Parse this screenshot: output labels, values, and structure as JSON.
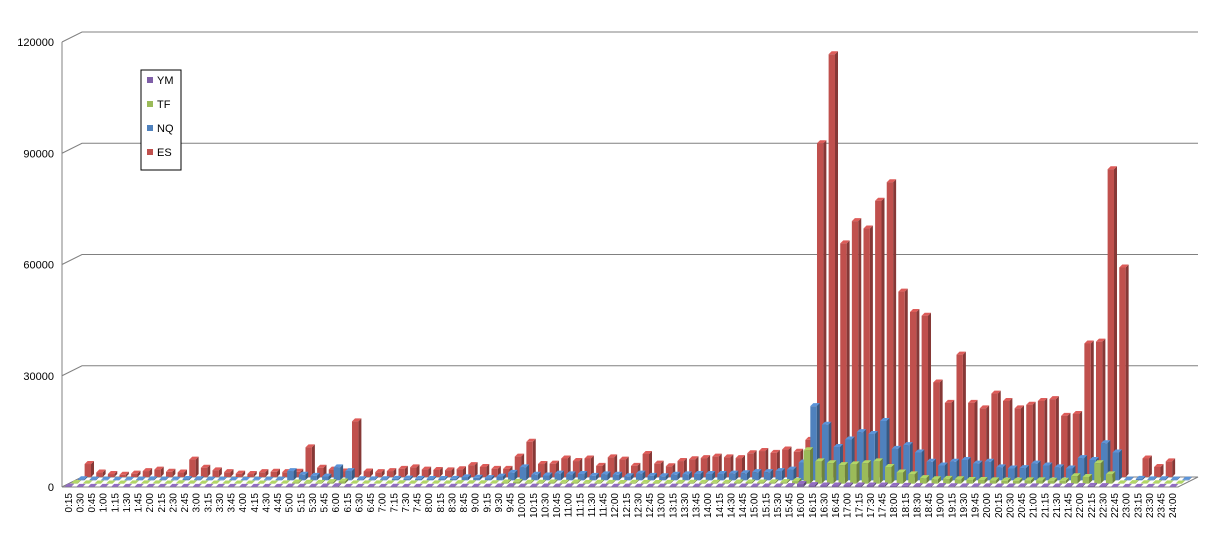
{
  "chart_data": {
    "type": "bar",
    "title": "",
    "xlabel": "",
    "ylabel": "",
    "ylim": [
      0,
      120000
    ],
    "yticks": [
      0,
      30000,
      60000,
      90000,
      120000
    ],
    "grid": true,
    "legend_position": "top-left",
    "legend_order": [
      "YM",
      "TF",
      "NQ",
      "ES"
    ],
    "categories": [
      "0:15",
      "0:30",
      "0:45",
      "1:00",
      "1:15",
      "1:30",
      "1:45",
      "2:00",
      "2:15",
      "2:30",
      "2:45",
      "3:00",
      "3:15",
      "3:30",
      "3:45",
      "4:00",
      "4:15",
      "4:30",
      "4:45",
      "5:00",
      "5:15",
      "5:30",
      "5:45",
      "6:00",
      "6:15",
      "6:30",
      "6:45",
      "7:00",
      "7:15",
      "7:30",
      "7:45",
      "8:00",
      "8:15",
      "8:30",
      "8:45",
      "9:00",
      "9:15",
      "9:30",
      "9:45",
      "10:00",
      "10:15",
      "10:30",
      "10:45",
      "11:00",
      "11:15",
      "11:30",
      "11:45",
      "12:00",
      "12:15",
      "12:30",
      "12:45",
      "13:00",
      "13:15",
      "13:30",
      "13:45",
      "14:00",
      "14:15",
      "14:30",
      "14:45",
      "15:00",
      "15:15",
      "15:30",
      "15:45",
      "16:00",
      "16:15",
      "16:30",
      "16:45",
      "17:00",
      "17:15",
      "17:30",
      "17:45",
      "18:00",
      "18:15",
      "18:30",
      "18:45",
      "19:00",
      "19:15",
      "19:30",
      "19:45",
      "20:00",
      "20:15",
      "20:30",
      "20:45",
      "21:00",
      "21:15",
      "21:30",
      "21:45",
      "22:00",
      "22:15",
      "22:30",
      "22:45",
      "23:00",
      "23:15",
      "23:30",
      "23:45",
      "24:00"
    ],
    "series": [
      {
        "name": "YM",
        "color": "#7f5fa8",
        "values": [
          100,
          50,
          50,
          30,
          30,
          40,
          40,
          40,
          30,
          50,
          40,
          30,
          30,
          20,
          20,
          30,
          30,
          30,
          50,
          100,
          80,
          70,
          150,
          200,
          50,
          40,
          40,
          50,
          60,
          50,
          50,
          50,
          60,
          80,
          70,
          60,
          60,
          150,
          200,
          100,
          100,
          120,
          100,
          120,
          80,
          100,
          90,
          70,
          100,
          80,
          70,
          90,
          90,
          100,
          100,
          100,
          100,
          120,
          130,
          120,
          130,
          150,
          250,
          800,
          500,
          400,
          400,
          400,
          400,
          400,
          400,
          300,
          300,
          250,
          200,
          250,
          200,
          180,
          180,
          160,
          150,
          150,
          160,
          160,
          150,
          150,
          250,
          250,
          300,
          250,
          30,
          50,
          40,
          40,
          30,
          20
        ]
      },
      {
        "name": "TF",
        "color": "#9bbb59",
        "values": [
          150,
          80,
          60,
          50,
          50,
          70,
          70,
          70,
          60,
          100,
          80,
          60,
          50,
          40,
          40,
          50,
          50,
          60,
          80,
          300,
          250,
          200,
          400,
          600,
          80,
          70,
          70,
          90,
          100,
          90,
          80,
          80,
          90,
          150,
          120,
          110,
          100,
          300,
          500,
          250,
          250,
          300,
          250,
          300,
          200,
          250,
          220,
          180,
          250,
          200,
          180,
          230,
          220,
          250,
          250,
          250,
          250,
          300,
          330,
          300,
          350,
          400,
          700,
          9000,
          6000,
          5500,
          5000,
          5200,
          5500,
          6000,
          4500,
          3000,
          2500,
          1500,
          1200,
          1300,
          1200,
          1000,
          1000,
          900,
          800,
          800,
          900,
          900,
          800,
          800,
          2000,
          1800,
          5500,
          2500,
          80,
          150,
          100,
          110,
          80,
          50
        ]
      },
      {
        "name": "NQ",
        "color": "#4f81bd",
        "values": [
          300,
          200,
          150,
          100,
          120,
          200,
          250,
          200,
          150,
          350,
          300,
          200,
          150,
          100,
          100,
          120,
          150,
          200,
          2500,
          1500,
          1200,
          1000,
          3500,
          2500,
          300,
          250,
          300,
          400,
          450,
          400,
          350,
          350,
          400,
          800,
          700,
          600,
          1000,
          2000,
          3500,
          1500,
          1300,
          1800,
          1600,
          1700,
          1200,
          1600,
          1500,
          1100,
          1800,
          1200,
          1100,
          1500,
          1600,
          1700,
          1700,
          1700,
          1800,
          1900,
          2200,
          2200,
          2500,
          2900,
          4800,
          20000,
          15000,
          9000,
          11000,
          13000,
          12500,
          16000,
          8500,
          9500,
          7500,
          5000,
          4000,
          5000,
          5500,
          4500,
          5000,
          3500,
          3200,
          3300,
          4500,
          4000,
          3500,
          3200,
          6000,
          5500,
          10000,
          7500,
          200,
          400,
          250,
          300,
          200,
          150
        ]
      },
      {
        "name": "ES",
        "color": "#c0504d",
        "values": [
          3500,
          1200,
          800,
          600,
          900,
          1600,
          2000,
          1400,
          1200,
          4700,
          2500,
          1800,
          1300,
          900,
          800,
          1300,
          1400,
          1300,
          1400,
          8000,
          2500,
          2000,
          1500,
          15000,
          1500,
          1300,
          1600,
          2200,
          2600,
          2000,
          1900,
          1800,
          2100,
          3200,
          2700,
          2200,
          2200,
          5500,
          9500,
          3500,
          3600,
          5000,
          4300,
          5000,
          3000,
          5300,
          4700,
          3000,
          6200,
          3600,
          2900,
          4300,
          4800,
          5100,
          5500,
          5300,
          5100,
          6400,
          7000,
          6500,
          7400,
          6800,
          10000,
          90000,
          114000,
          63000,
          69000,
          67000,
          74500,
          79500,
          50000,
          44500,
          43500,
          25500,
          20000,
          33000,
          20000,
          18500,
          22500,
          20500,
          18500,
          19500,
          20500,
          21000,
          16500,
          17000,
          36000,
          36500,
          83000,
          56500,
          0,
          5000,
          2700,
          4200,
          0,
          0
        ]
      }
    ]
  }
}
